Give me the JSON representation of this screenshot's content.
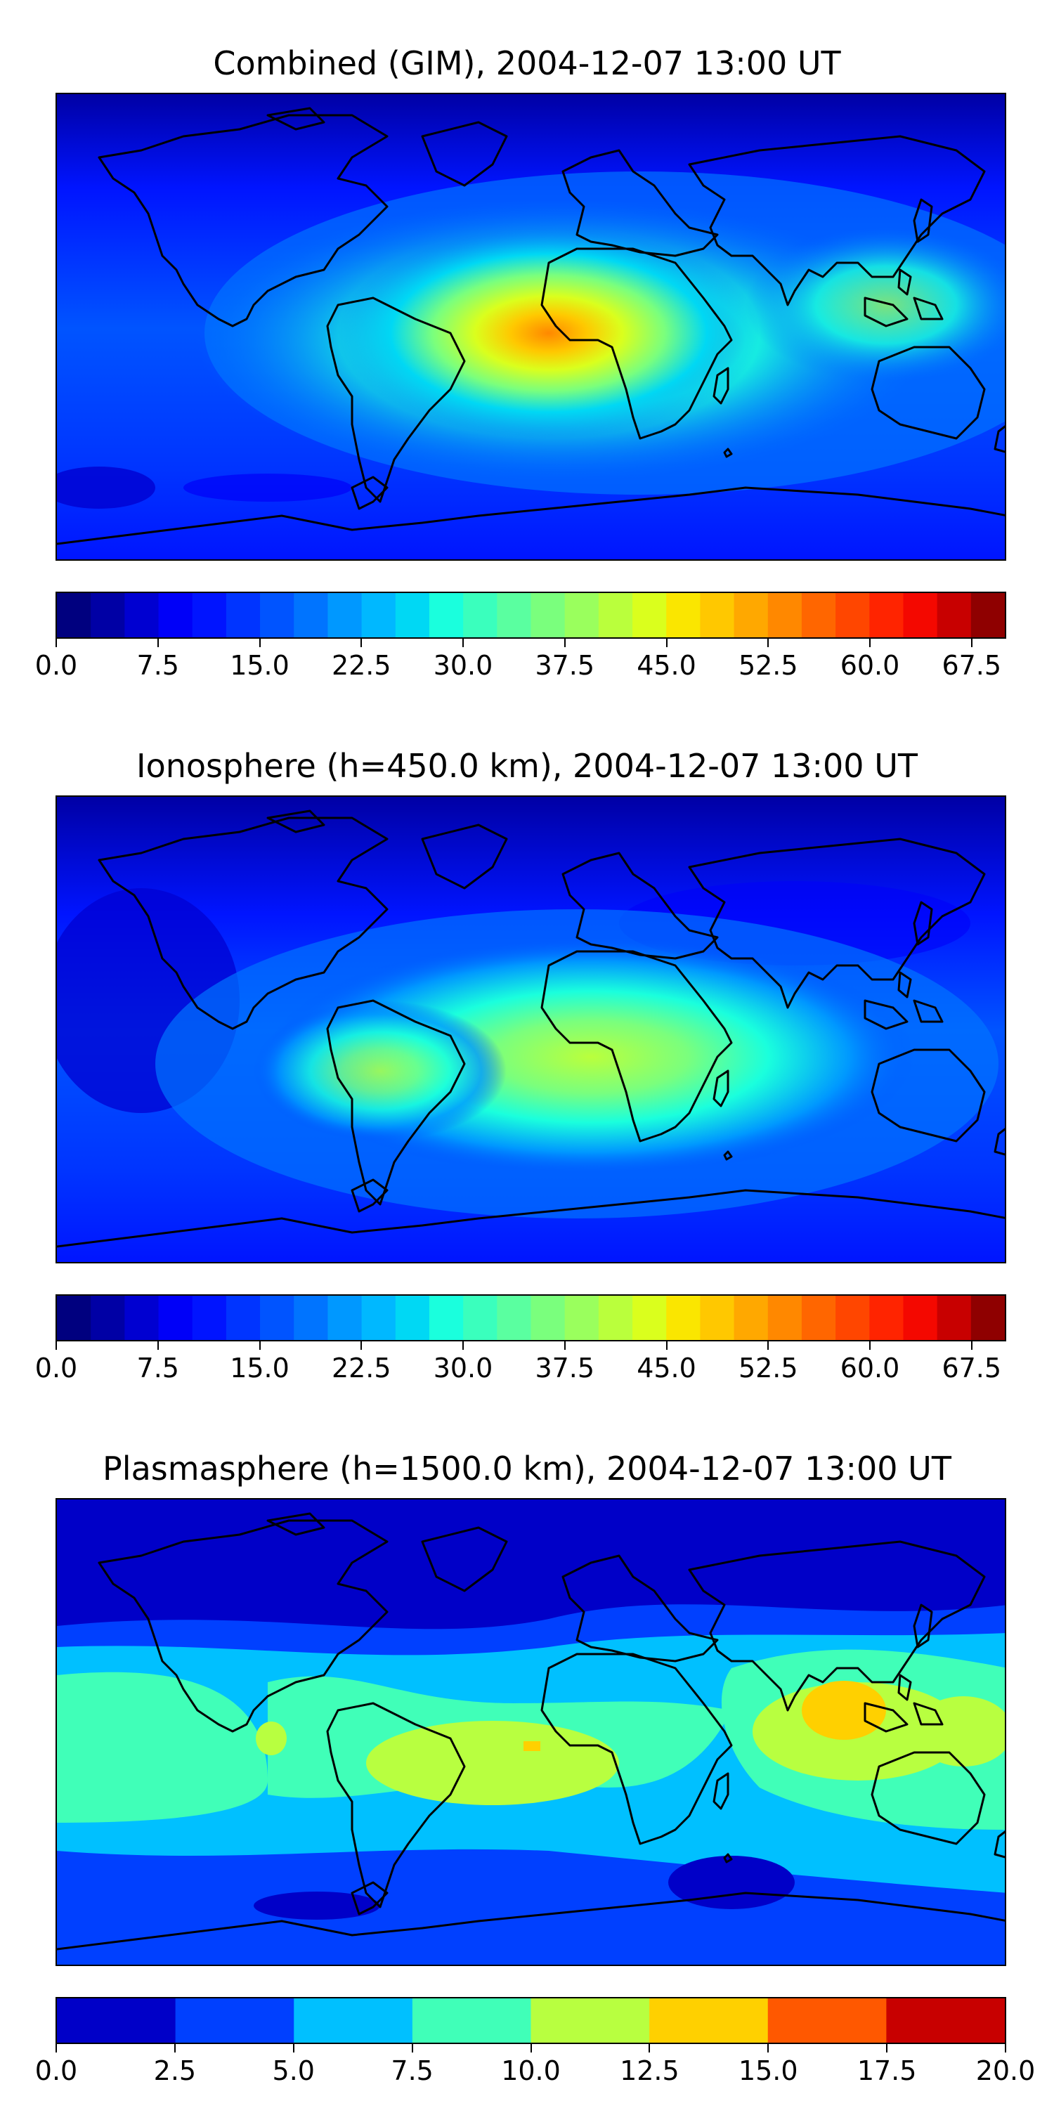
{
  "panels": [
    {
      "title": "Combined (GIM), 2004-12-07 13:00 UT",
      "colorbar": {
        "min": 0.0,
        "max": 70.0,
        "levels": 28,
        "colors": [
          "#00007f",
          "#0000a5",
          "#0000d1",
          "#0000f8",
          "#0014ff",
          "#0034ff",
          "#0054ff",
          "#0074ff",
          "#0098ff",
          "#00b8ff",
          "#00d8f4",
          "#1affdd",
          "#3affbd",
          "#5affa0",
          "#7aff7d",
          "#9aff5d",
          "#baff3c",
          "#daff1d",
          "#fae600",
          "#ffc800",
          "#ffa800",
          "#ff8800",
          "#ff6600",
          "#ff4600",
          "#ff2400",
          "#f40800",
          "#c80000",
          "#8f0000"
        ],
        "tick_labels": [
          "0.0",
          "7.5",
          "15.0",
          "22.5",
          "30.0",
          "37.5",
          "45.0",
          "52.5",
          "60.0",
          "67.5"
        ],
        "tick_values": [
          0.0,
          7.5,
          15.0,
          22.5,
          30.0,
          37.5,
          45.0,
          52.5,
          60.0,
          67.5
        ]
      }
    },
    {
      "title": "Ionosphere  (h=450.0 km), 2004-12-07 13:00 UT",
      "colorbar": {
        "min": 0.0,
        "max": 70.0,
        "levels": 28,
        "colors": [
          "#00007f",
          "#0000a5",
          "#0000d1",
          "#0000f8",
          "#0014ff",
          "#0034ff",
          "#0054ff",
          "#0074ff",
          "#0098ff",
          "#00b8ff",
          "#00d8f4",
          "#1affdd",
          "#3affbd",
          "#5affa0",
          "#7aff7d",
          "#9aff5d",
          "#baff3c",
          "#daff1d",
          "#fae600",
          "#ffc800",
          "#ffa800",
          "#ff8800",
          "#ff6600",
          "#ff4600",
          "#ff2400",
          "#f40800",
          "#c80000",
          "#8f0000"
        ],
        "tick_labels": [
          "0.0",
          "7.5",
          "15.0",
          "22.5",
          "30.0",
          "37.5",
          "45.0",
          "52.5",
          "60.0",
          "67.5"
        ],
        "tick_values": [
          0.0,
          7.5,
          15.0,
          22.5,
          30.0,
          37.5,
          45.0,
          52.5,
          60.0,
          67.5
        ]
      }
    },
    {
      "title": "Plasmasphere (h=1500.0 km), 2004-12-07 13:00 UT",
      "colorbar": {
        "min": 0.0,
        "max": 20.0,
        "levels": 8,
        "colors": [
          "#0000c8",
          "#0040ff",
          "#00c0ff",
          "#40ffb8",
          "#b8ff40",
          "#ffd000",
          "#ff5800",
          "#c80000"
        ],
        "tick_labels": [
          "0.0",
          "2.5",
          "5.0",
          "7.5",
          "10.0",
          "12.5",
          "15.0",
          "17.5",
          "20.0"
        ],
        "tick_values": [
          0.0,
          2.5,
          5.0,
          7.5,
          10.0,
          12.5,
          15.0,
          17.5,
          20.0
        ]
      }
    }
  ]
}
